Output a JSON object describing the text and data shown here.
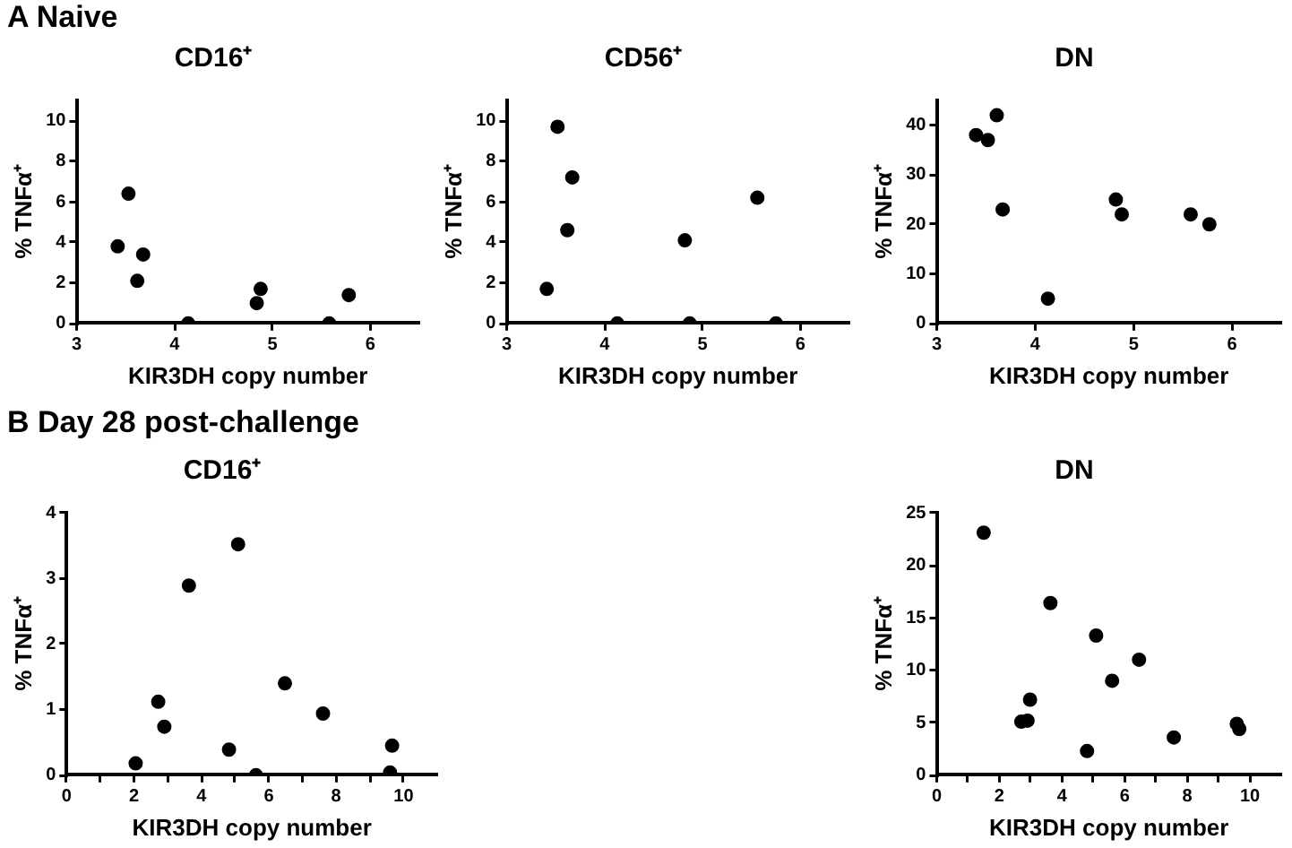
{
  "chart_data": [
    {
      "type": "scatter",
      "title": "CD16⁺",
      "xlabel": "KIR3DH copy number",
      "ylabel": "% TNFα⁺",
      "annotations": [
        "A Naive"
      ],
      "marker": "circle",
      "legend": false,
      "xlim": [
        3,
        6.5
      ],
      "xticks": [
        3,
        4,
        5,
        6
      ],
      "ylim": [
        0,
        11
      ],
      "yticks": [
        0,
        2,
        4,
        6,
        8,
        10
      ],
      "series": [
        {
          "color": "#000000",
          "x": [
            3.42,
            3.53,
            3.62,
            3.68,
            4.14,
            4.84,
            4.88,
            5.58,
            5.78
          ],
          "values": [
            3.8,
            6.4,
            2.1,
            3.4,
            0,
            1.0,
            1.7,
            0,
            1.4
          ]
        }
      ]
    },
    {
      "type": "scatter",
      "title": "CD56⁺",
      "xlabel": "KIR3DH copy number",
      "ylabel": "% TNFα⁺",
      "marker": "circle",
      "legend": false,
      "xlim": [
        3,
        6.5
      ],
      "xticks": [
        3,
        4,
        5,
        6
      ],
      "ylim": [
        0,
        11
      ],
      "yticks": [
        0,
        2,
        4,
        6,
        8,
        10
      ],
      "series": [
        {
          "color": "#000000",
          "x": [
            3.41,
            3.52,
            3.62,
            3.67,
            4.13,
            4.82,
            4.87,
            5.56,
            5.75
          ],
          "values": [
            1.7,
            9.7,
            4.6,
            7.2,
            0,
            4.1,
            0,
            6.2,
            0
          ]
        }
      ]
    },
    {
      "type": "scatter",
      "title": "DN",
      "xlabel": "KIR3DH copy number",
      "ylabel": "% TNFα⁺",
      "marker": "circle",
      "legend": false,
      "xlim": [
        3,
        6.5
      ],
      "xticks": [
        3,
        4,
        5,
        6
      ],
      "ylim": [
        0,
        45
      ],
      "yticks": [
        0,
        10,
        20,
        30,
        40
      ],
      "series": [
        {
          "color": "#000000",
          "x": [
            3.4,
            3.52,
            3.61,
            3.67,
            4.13,
            4.82,
            4.88,
            5.58,
            5.77
          ],
          "values": [
            38,
            37,
            42,
            23,
            5,
            25,
            22,
            22,
            20
          ]
        }
      ]
    },
    {
      "type": "scatter",
      "title": "CD16⁺",
      "xlabel": "KIR3DH copy number",
      "ylabel": "% TNFα⁺",
      "annotations": [
        "B Day 28 post-challenge"
      ],
      "marker": "circle",
      "legend": false,
      "xlim": [
        0,
        11
      ],
      "xticks": [
        0,
        {
          "value": 1,
          "label": null
        },
        2,
        {
          "value": 3,
          "label": null
        },
        4,
        {
          "value": 5,
          "label": null
        },
        6,
        {
          "value": 7,
          "label": null
        },
        8,
        {
          "value": 9,
          "label": null
        },
        10
      ],
      "ylim": [
        0,
        4
      ],
      "yticks": [
        0,
        1,
        2,
        3,
        4
      ],
      "series": [
        {
          "color": "#000000",
          "x": [
            2.05,
            2.72,
            2.9,
            3.63,
            4.82,
            5.09,
            5.62,
            6.48,
            7.61,
            9.66,
            9.6
          ],
          "values": [
            0.18,
            1.12,
            0.74,
            2.89,
            0.39,
            3.52,
            0,
            1.4,
            0.94,
            0.45,
            0.04
          ]
        }
      ]
    },
    {
      "type": "scatter",
      "title": "DN",
      "xlabel": "KIR3DH copy number",
      "ylabel": "% TNFα⁺",
      "marker": "circle",
      "legend": false,
      "xlim": [
        0,
        11
      ],
      "xticks": [
        0,
        {
          "value": 1,
          "label": null
        },
        2,
        {
          "value": 3,
          "label": null
        },
        4,
        {
          "value": 5,
          "label": null
        },
        6,
        {
          "value": 7,
          "label": null
        },
        8,
        {
          "value": 9,
          "label": null
        },
        10
      ],
      "ylim": [
        0,
        25
      ],
      "yticks": [
        0,
        5,
        10,
        15,
        20,
        25
      ],
      "series": [
        {
          "color": "#000000",
          "x": [
            1.5,
            2.7,
            2.9,
            2.98,
            3.63,
            4.8,
            5.09,
            5.6,
            6.46,
            7.57,
            9.58,
            9.66
          ],
          "values": [
            23.1,
            5.1,
            5.2,
            7.2,
            16.4,
            2.3,
            13.3,
            9.0,
            11.0,
            3.6,
            4.9,
            4.4
          ]
        }
      ]
    }
  ]
}
